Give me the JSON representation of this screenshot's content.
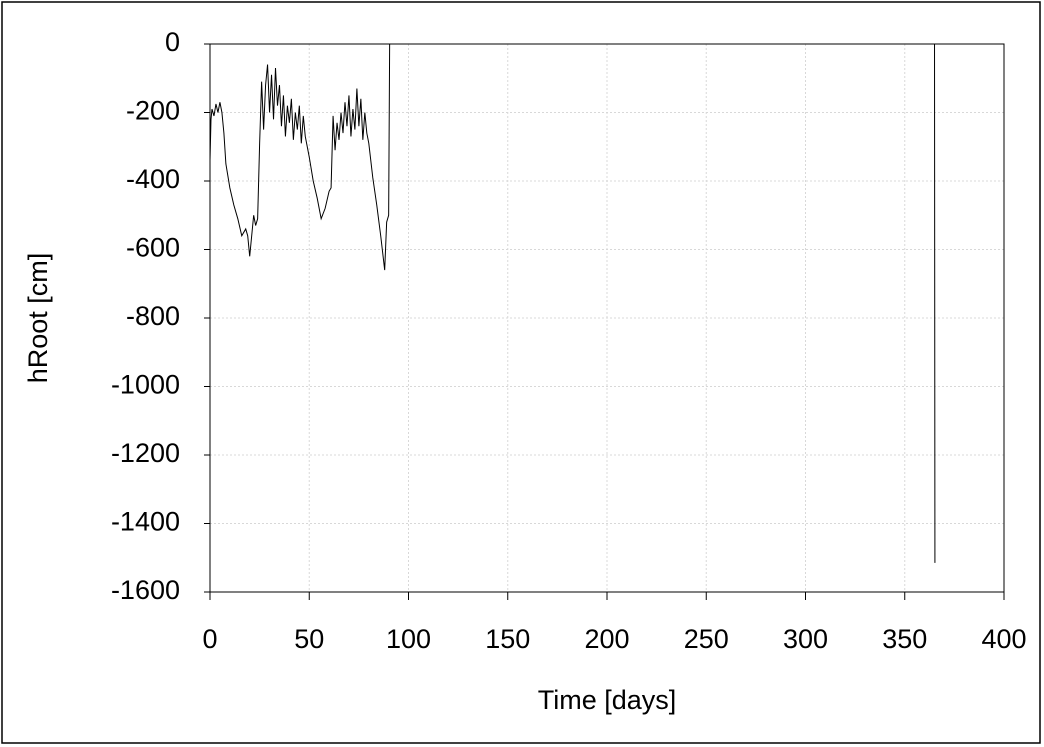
{
  "chart_data": {
    "type": "line",
    "x_label": "Time [days]",
    "y_label": "hRoot [cm]",
    "x": [
      0,
      0.5,
      1,
      2,
      3,
      4,
      5,
      6,
      7,
      8,
      10,
      12,
      14,
      16,
      18,
      19,
      20,
      21,
      22,
      23,
      24,
      25,
      26,
      27,
      28,
      29,
      30,
      31,
      32,
      33,
      34,
      35,
      36,
      37,
      38,
      39,
      40,
      41,
      42,
      43,
      44,
      45,
      46,
      47,
      48,
      49,
      50,
      52,
      54,
      56,
      58,
      60,
      61,
      62,
      63,
      64,
      65,
      66,
      67,
      68,
      69,
      70,
      71,
      72,
      73,
      74,
      75,
      76,
      77,
      78,
      79,
      80,
      82,
      84,
      86,
      88,
      89,
      90,
      90.5,
      365,
      365.2
    ],
    "values": [
      -340,
      -220,
      -190,
      -210,
      -175,
      -200,
      -170,
      -200,
      -260,
      -350,
      -420,
      -470,
      -510,
      -560,
      -540,
      -560,
      -620,
      -560,
      -500,
      -530,
      -510,
      -290,
      -110,
      -250,
      -120,
      -60,
      -200,
      -90,
      -220,
      -70,
      -180,
      -120,
      -240,
      -150,
      -270,
      -180,
      -230,
      -160,
      -280,
      -200,
      -250,
      -180,
      -290,
      -210,
      -270,
      -300,
      -330,
      -400,
      -450,
      -510,
      -480,
      -430,
      -420,
      -210,
      -310,
      -230,
      -280,
      -200,
      -260,
      -170,
      -240,
      -150,
      -270,
      -190,
      -250,
      -130,
      -240,
      -160,
      -280,
      -200,
      -260,
      -290,
      -390,
      -470,
      -560,
      -660,
      -520,
      -500,
      0,
      0,
      -1515
    ],
    "color": "#000000",
    "xlim": [
      0,
      400
    ],
    "xticks": [
      0,
      50,
      100,
      150,
      200,
      250,
      300,
      350,
      400
    ],
    "ylim": [
      -1600,
      0
    ],
    "yticks": [
      0,
      -200,
      -400,
      -600,
      -800,
      -1000,
      -1200,
      -1400,
      -1600
    ],
    "grid": true
  }
}
